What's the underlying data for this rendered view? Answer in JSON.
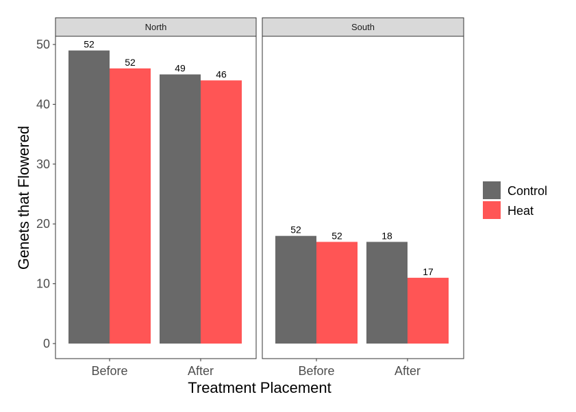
{
  "chart_data": {
    "type": "bar",
    "xlabel": "Treatment Placement",
    "ylabel": "Genets that Flowered",
    "ylim": [
      0,
      50
    ],
    "yticks": [
      0,
      10,
      20,
      30,
      40,
      50
    ],
    "categories": [
      "Before",
      "After"
    ],
    "colors": {
      "Control": "#696969",
      "Heat": "#ff5555"
    },
    "legend": {
      "placement": "right",
      "entries": [
        "Control",
        "Heat"
      ]
    },
    "grid": false,
    "facets": [
      {
        "label": "North",
        "series": [
          {
            "name": "Control",
            "values": [
              49,
              45
            ],
            "labels": [
              "52",
              "49"
            ]
          },
          {
            "name": "Heat",
            "values": [
              46,
              44
            ],
            "labels": [
              "52",
              "46"
            ]
          }
        ]
      },
      {
        "label": "South",
        "series": [
          {
            "name": "Control",
            "values": [
              18,
              17
            ],
            "labels": [
              "52",
              "18"
            ]
          },
          {
            "name": "Heat",
            "values": [
              17,
              11
            ],
            "labels": [
              "52",
              "17"
            ]
          }
        ]
      }
    ]
  }
}
